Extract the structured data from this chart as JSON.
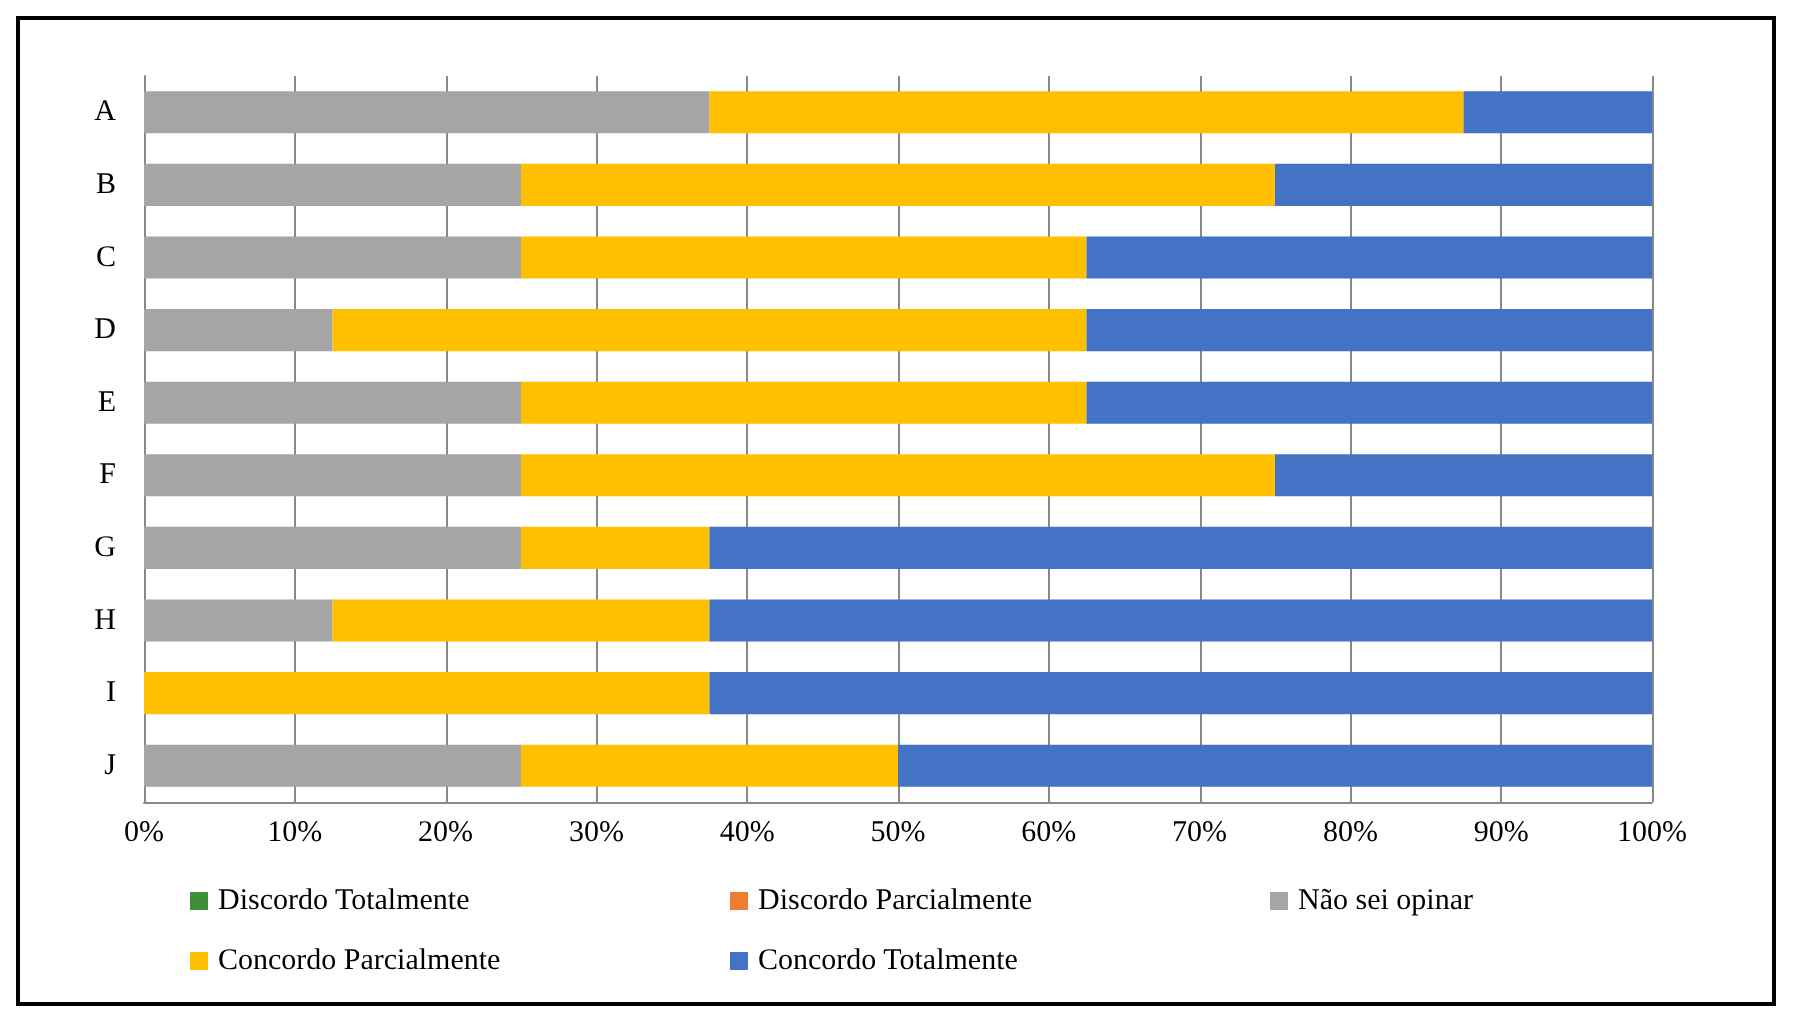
{
  "chart_data": {
    "type": "bar",
    "orientation": "horizontal",
    "stacked": true,
    "categories": [
      "A",
      "B",
      "C",
      "D",
      "E",
      "F",
      "G",
      "H",
      "I",
      "J"
    ],
    "series": [
      {
        "name": "Discordo Totalmente",
        "color": "#3f8f3a",
        "values": [
          0,
          0,
          0,
          0,
          0,
          0,
          0,
          0,
          0,
          0
        ]
      },
      {
        "name": "Discordo Parcialmente",
        "color": "#ed7d31",
        "values": [
          0,
          0,
          0,
          0,
          0,
          0,
          0,
          0,
          0,
          0
        ]
      },
      {
        "name": "Não sei opinar",
        "color": "#a5a5a5",
        "values": [
          37.5,
          25,
          25,
          12.5,
          25,
          25,
          25,
          12.5,
          0,
          25
        ]
      },
      {
        "name": "Concordo Parcialmente",
        "color": "#ffc000",
        "values": [
          50,
          50,
          37.5,
          50,
          37.5,
          50,
          12.5,
          25,
          37.5,
          25
        ]
      },
      {
        "name": "Concordo Totalmente",
        "color": "#4472c4",
        "values": [
          12.5,
          25,
          37.5,
          37.5,
          37.5,
          25,
          62.5,
          62.5,
          62.5,
          50
        ]
      }
    ],
    "xlim": [
      0,
      100
    ],
    "xticks": [
      {
        "value": 0,
        "label": "0%"
      },
      {
        "value": 10,
        "label": "10%"
      },
      {
        "value": 20,
        "label": "20%"
      },
      {
        "value": 30,
        "label": "30%"
      },
      {
        "value": 40,
        "label": "40%"
      },
      {
        "value": 50,
        "label": "50%"
      },
      {
        "value": 60,
        "label": "60%"
      },
      {
        "value": 70,
        "label": "70%"
      },
      {
        "value": 80,
        "label": "80%"
      },
      {
        "value": 90,
        "label": "90%"
      },
      {
        "value": 100,
        "label": "100%"
      }
    ],
    "grid": "x",
    "legend": "bottom"
  }
}
